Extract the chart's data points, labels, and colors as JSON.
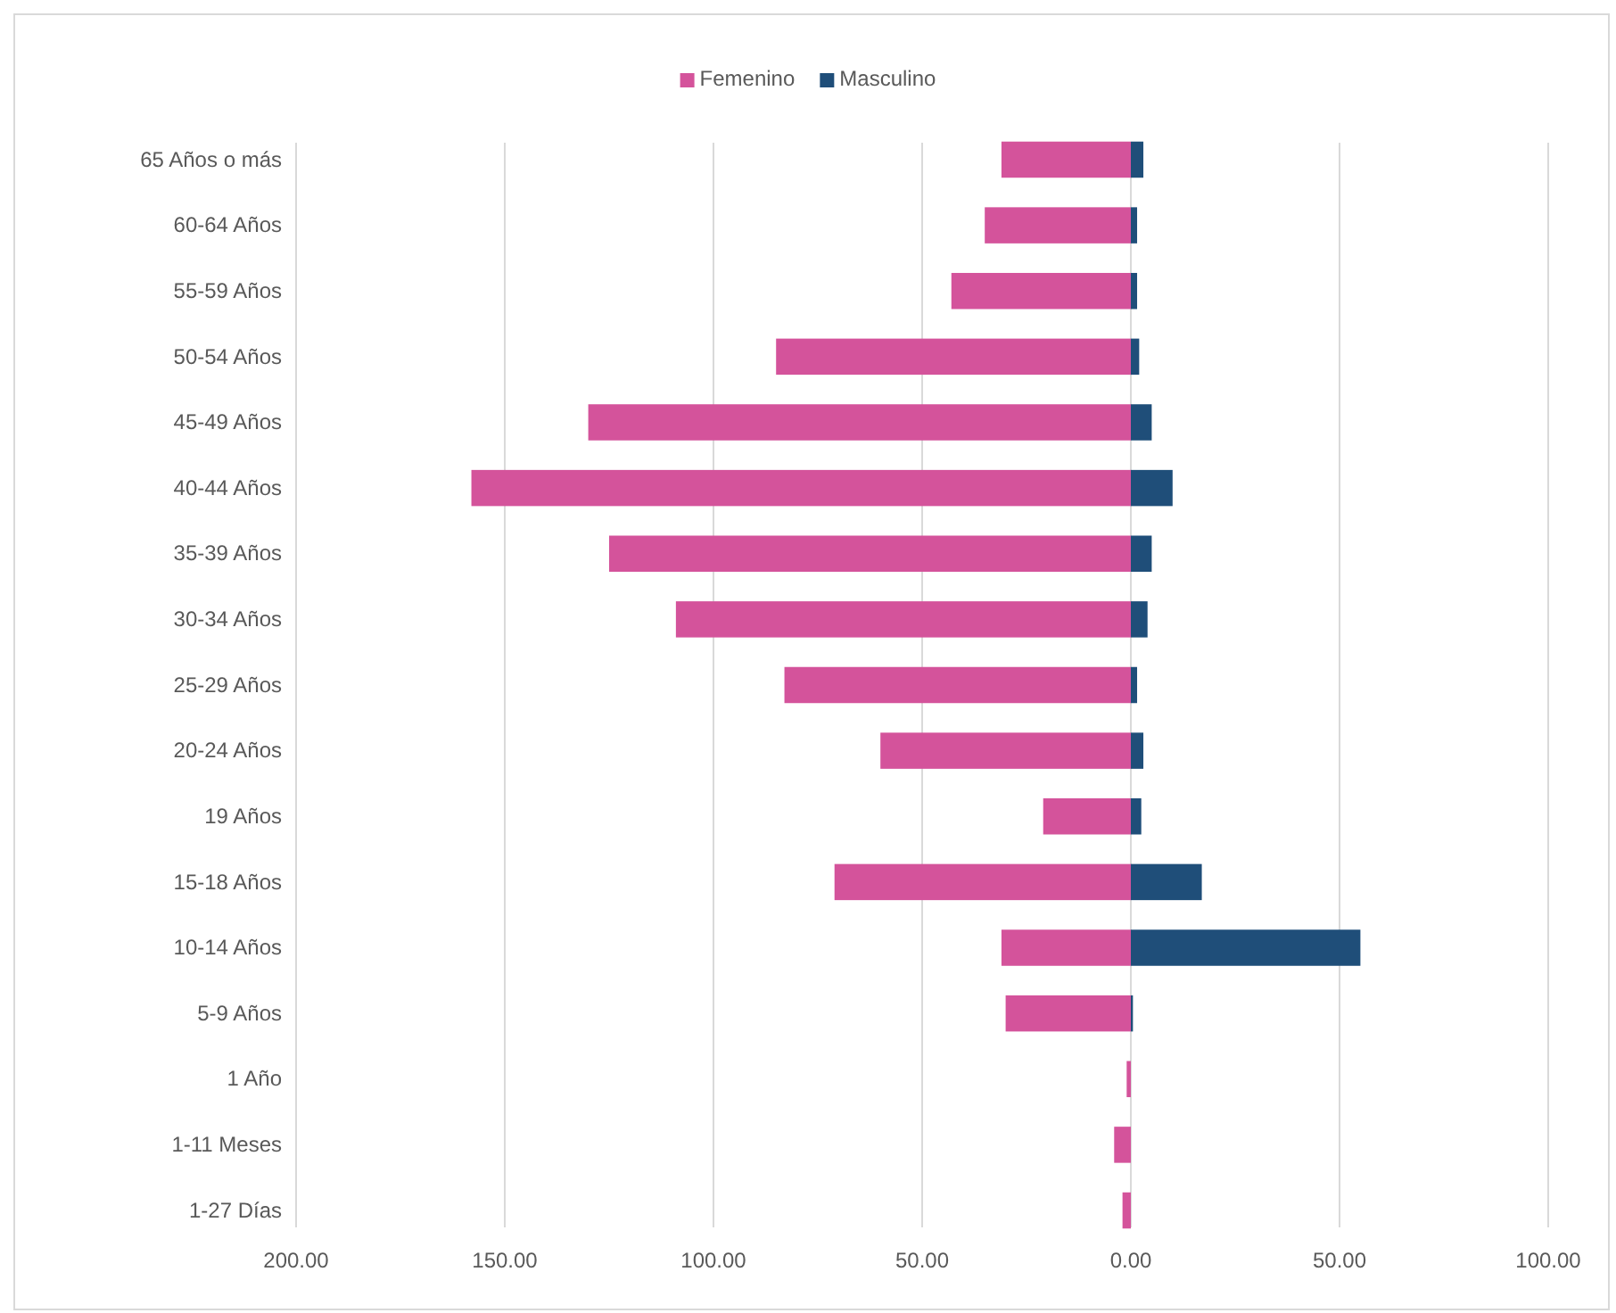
{
  "chart_data": {
    "type": "bar",
    "orientation": "horizontal",
    "stacked": true,
    "categories": [
      "65 Años o más",
      "60-64 Años",
      "55-59 Años",
      "50-54 Años",
      "45-49 Años",
      "40-44 Años",
      "35-39 Años",
      "30-34 Años",
      "25-29 Años",
      "20-24 Años",
      "19 Años",
      "15-18 Años",
      "10-14 Años",
      "5-9 Años",
      "1 Año",
      "1-11 Meses",
      "1-27 Días"
    ],
    "series": [
      {
        "name": "Femenino",
        "color": "#d4539b",
        "values": [
          -31,
          -35,
          -43,
          -85,
          -130,
          -158,
          -125,
          -109,
          -83,
          -60,
          -21,
          -71,
          -31,
          -30,
          -1,
          -4,
          -2
        ]
      },
      {
        "name": "Masculino",
        "color": "#1f4e79",
        "values": [
          3,
          1.5,
          1.5,
          2,
          5,
          10,
          5,
          4,
          1.5,
          3,
          2.5,
          17,
          55,
          0.5,
          0,
          0,
          0
        ]
      }
    ],
    "xlim": [
      -200,
      100
    ],
    "xticks": [
      {
        "value": -200,
        "label": "200.00"
      },
      {
        "value": -150,
        "label": "150.00"
      },
      {
        "value": -100,
        "label": "100.00"
      },
      {
        "value": -50,
        "label": "50.00"
      },
      {
        "value": 0,
        "label": "0.00"
      },
      {
        "value": 50,
        "label": "50.00"
      },
      {
        "value": 100,
        "label": "100.00"
      }
    ],
    "grid": "x",
    "legend": "top"
  }
}
